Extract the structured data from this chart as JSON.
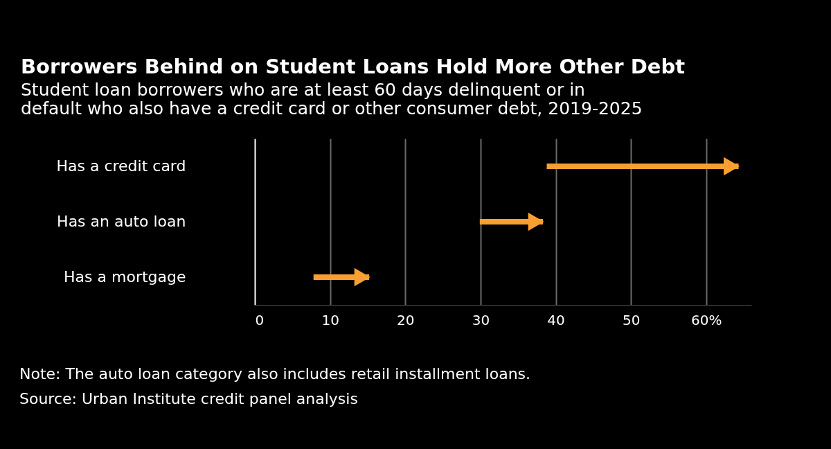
{
  "chart_data": {
    "type": "bar",
    "orientation": "horizontal",
    "title": "Borrowers Behind on Student Loans Hold More Other Debt",
    "subtitle": "Student loan borrowers who are at least 60 days delinquent or in default who also have a credit card or other consumer debt, 2019-2025",
    "categories": [
      "Has a credit card",
      "Has an auto loan",
      "Has a mortgage"
    ],
    "base": [
      38.8,
      29.9,
      7.8
    ],
    "values": [
      25.5,
      8.4,
      7.4
    ],
    "color": "#f7a031",
    "xlim": [
      0,
      66
    ],
    "xticks": [
      0,
      10,
      20,
      30,
      40,
      50,
      {
        "value": 60,
        "label": "60%"
      }
    ],
    "grid": "x",
    "annotations": [
      "Note: The auto loan category also includes retail installment loans.",
      "Source: Urban Institute credit panel analysis"
    ]
  }
}
